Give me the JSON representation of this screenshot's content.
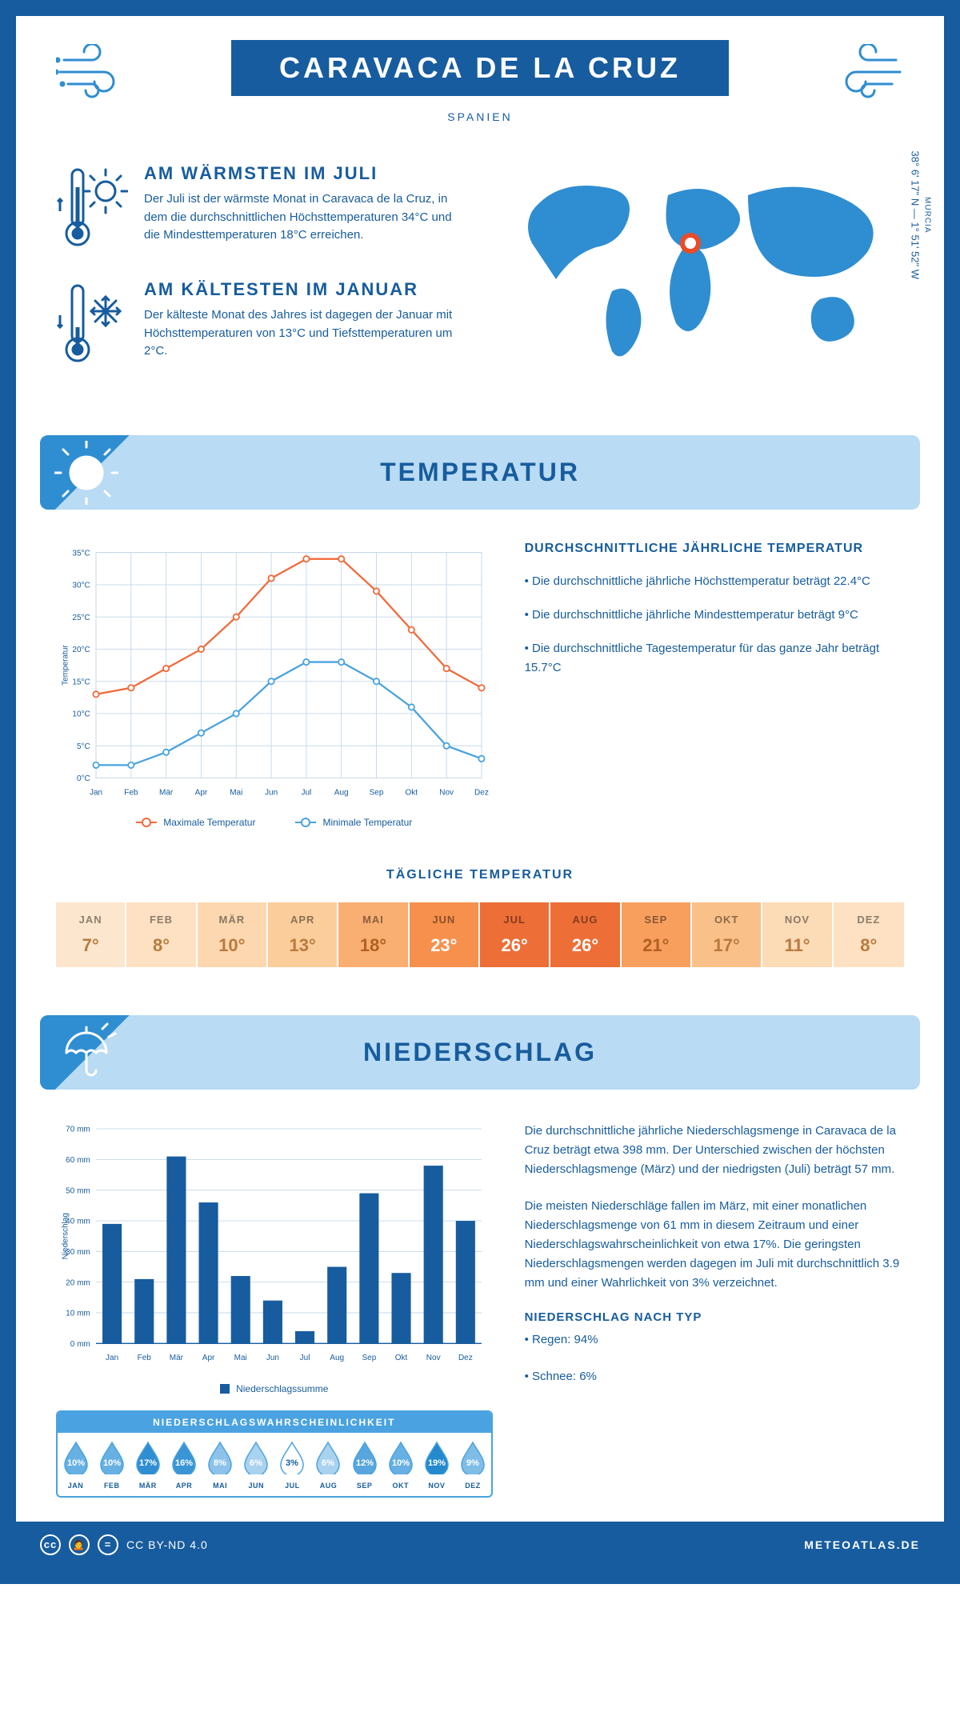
{
  "header": {
    "title": "CARAVACA DE LA CRUZ",
    "country": "SPANIEN",
    "region": "MURCIA",
    "coords": "38° 6' 17\" N — 1° 51' 52\" W"
  },
  "factoids": {
    "warm": {
      "title": "AM WÄRMSTEN IM JULI",
      "text": "Der Juli ist der wärmste Monat in Caravaca de la Cruz, in dem die durchschnittlichen Höchsttemperaturen 34°C und die Mindesttemperaturen 18°C erreichen."
    },
    "cold": {
      "title": "AM KÄLTESTEN IM JANUAR",
      "text": "Der kälteste Monat des Jahres ist dagegen der Januar mit Höchsttemperaturen von 13°C und Tiefsttemperaturen um 2°C."
    }
  },
  "colors": {
    "brand": "#175c9e",
    "light": "#b9dbf3",
    "accent": "#2f8ed1",
    "orange": "#f26a3a",
    "blue_line": "#4aa3e0",
    "grid": "#c5d8ea",
    "marker_hot": "#e84c28"
  },
  "temperature": {
    "section_title": "TEMPERATUR",
    "info_title": "DURCHSCHNITTLICHE JÄHRLICHE TEMPERATUR",
    "bullets": [
      "• Die durchschnittliche jährliche Höchsttemperatur beträgt 22.4°C",
      "• Die durchschnittliche jährliche Mindesttemperatur beträgt 9°C",
      "• Die durchschnittliche Tagestemperatur für das ganze Jahr beträgt 15.7°C"
    ],
    "chart": {
      "months": [
        "Jan",
        "Feb",
        "Mär",
        "Apr",
        "Mai",
        "Jun",
        "Jul",
        "Aug",
        "Sep",
        "Okt",
        "Nov",
        "Dez"
      ],
      "max": [
        13,
        14,
        17,
        20,
        25,
        31,
        34,
        34,
        29,
        23,
        17,
        14
      ],
      "min": [
        2,
        2,
        4,
        7,
        10,
        15,
        18,
        18,
        15,
        11,
        5,
        3
      ],
      "ylim": [
        0,
        35
      ],
      "ytick_step": 5,
      "y_unit": "°C",
      "legend_max": "Maximale Temperatur",
      "legend_min": "Minimale Temperatur",
      "y_axis_label": "Temperatur",
      "line_max_color": "#f26a3a",
      "line_min_color": "#4aa3e0",
      "grid_color": "#c5d8ea"
    },
    "daily": {
      "title": "TÄGLICHE TEMPERATUR",
      "months": [
        "JAN",
        "FEB",
        "MÄR",
        "APR",
        "MAI",
        "JUN",
        "JUL",
        "AUG",
        "SEP",
        "OKT",
        "NOV",
        "DEZ"
      ],
      "values": [
        7,
        8,
        10,
        13,
        18,
        23,
        26,
        26,
        21,
        17,
        11,
        8
      ],
      "cell_colors": [
        "#fde6ce",
        "#fde1c2",
        "#fcd7af",
        "#fbcd9b",
        "#f9ae72",
        "#f7904c",
        "#ed6e36",
        "#ed6e36",
        "#f89f5e",
        "#fac089",
        "#fcdbb7",
        "#fde1c2"
      ],
      "text_colors": [
        "#b87a3e",
        "#b87a3e",
        "#b87a3e",
        "#b87a3e",
        "#b06020",
        "#ffffff",
        "#ffffff",
        "#ffffff",
        "#b06020",
        "#b87a3e",
        "#b87a3e",
        "#b87a3e"
      ]
    }
  },
  "precip": {
    "section_title": "NIEDERSCHLAG",
    "para1": "Die durchschnittliche jährliche Niederschlagsmenge in Caravaca de la Cruz beträgt etwa 398 mm. Der Unterschied zwischen der höchsten Niederschlagsmenge (März) und der niedrigsten (Juli) beträgt 57 mm.",
    "para2": "Die meisten Niederschläge fallen im März, mit einer monatlichen Niederschlagsmenge von 61 mm in diesem Zeitraum und einer Niederschlagswahrscheinlichkeit von etwa 17%. Die geringsten Niederschlagsmengen werden dagegen im Juli mit durchschnittlich 3.9 mm und einer Wahrlichkeit von 3% verzeichnet.",
    "type_title": "NIEDERSCHLAG NACH TYP",
    "type_rain": "• Regen: 94%",
    "type_snow": "• Schnee: 6%",
    "chart": {
      "months": [
        "Jan",
        "Feb",
        "Mär",
        "Apr",
        "Mai",
        "Jun",
        "Jul",
        "Aug",
        "Sep",
        "Okt",
        "Nov",
        "Dez"
      ],
      "values": [
        39,
        21,
        61,
        46,
        22,
        14,
        4,
        25,
        49,
        23,
        58,
        40
      ],
      "ylim": [
        0,
        70
      ],
      "ytick_step": 10,
      "y_unit": " mm",
      "y_axis_label": "Niederschlag",
      "legend": "Niederschlagssumme",
      "bar_color": "#175c9e",
      "grid_color": "#c5d8ea"
    },
    "prob": {
      "title": "NIEDERSCHLAGSWAHRSCHEINLICHKEIT",
      "months": [
        "JAN",
        "FEB",
        "MÄR",
        "APR",
        "MAI",
        "JUN",
        "JUL",
        "AUG",
        "SEP",
        "OKT",
        "NOV",
        "DEZ"
      ],
      "values": [
        "10%",
        "10%",
        "17%",
        "16%",
        "8%",
        "6%",
        "3%",
        "6%",
        "12%",
        "10%",
        "19%",
        "9%"
      ],
      "drop_colors": [
        "#67b0e3",
        "#67b0e3",
        "#2f8ed1",
        "#3a95d5",
        "#8dc3ea",
        "#a9d2ef",
        "#ffffff",
        "#a9d2ef",
        "#57a6de",
        "#67b0e3",
        "#2489cd",
        "#7fbde7"
      ]
    }
  },
  "footer": {
    "license": "CC BY-ND 4.0",
    "site": "METEOATLAS.DE"
  }
}
